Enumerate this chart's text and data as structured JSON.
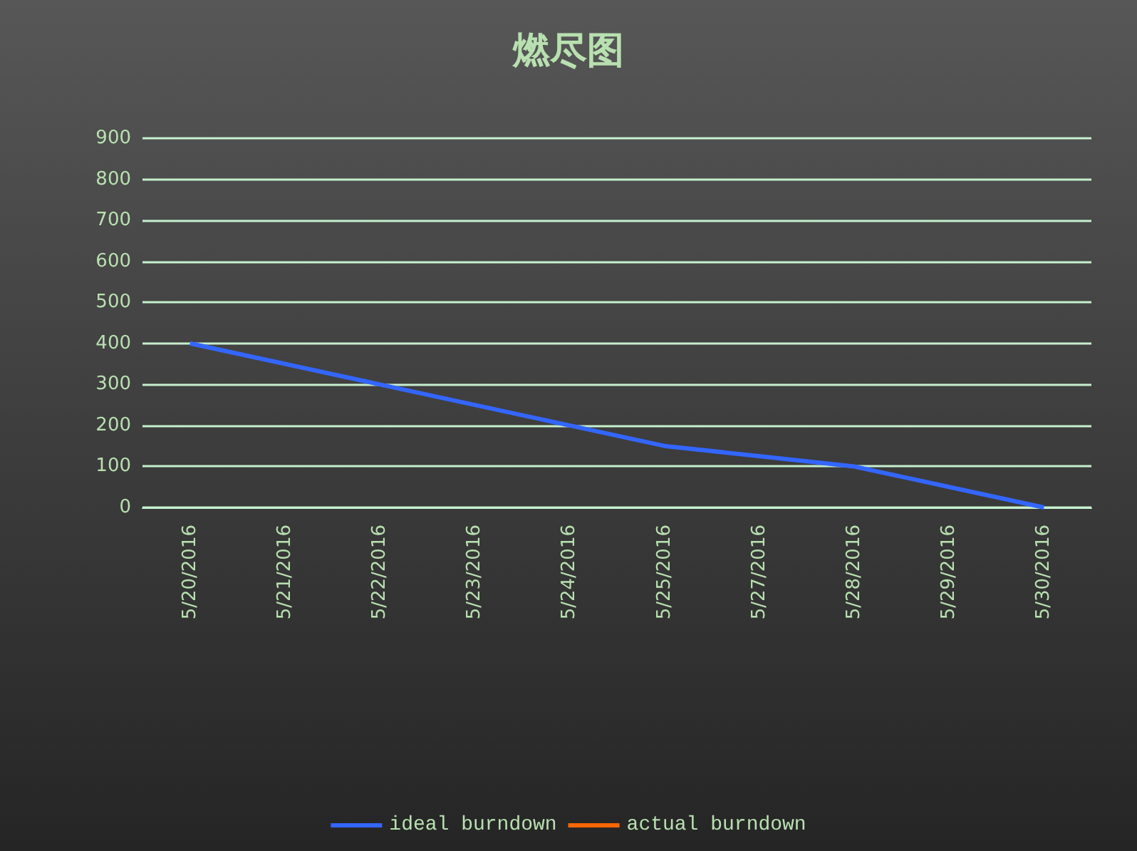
{
  "chart_data": {
    "type": "line",
    "title": "燃尽图",
    "categories": [
      "5/20/2016",
      "5/21/2016",
      "5/22/2016",
      "5/23/2016",
      "5/24/2016",
      "5/25/2016",
      "5/27/2016",
      "5/28/2016",
      "5/29/2016",
      "5/30/2016"
    ],
    "series": [
      {
        "name": "ideal burndown",
        "color": "#3366ff",
        "values": [
          400,
          350,
          300,
          250,
          200,
          150,
          125,
          100,
          50,
          0
        ]
      },
      {
        "name": "actual burndown",
        "color": "#ff6600",
        "values": [
          null,
          null,
          null,
          null,
          null,
          null,
          null,
          null,
          null,
          null
        ]
      }
    ],
    "ylim": [
      0,
      900
    ],
    "yticks": [
      0,
      100,
      200,
      300,
      400,
      500,
      600,
      700,
      800,
      900
    ],
    "grid": "y",
    "legend": "bottom",
    "marker": "none",
    "line_style": "solid"
  }
}
